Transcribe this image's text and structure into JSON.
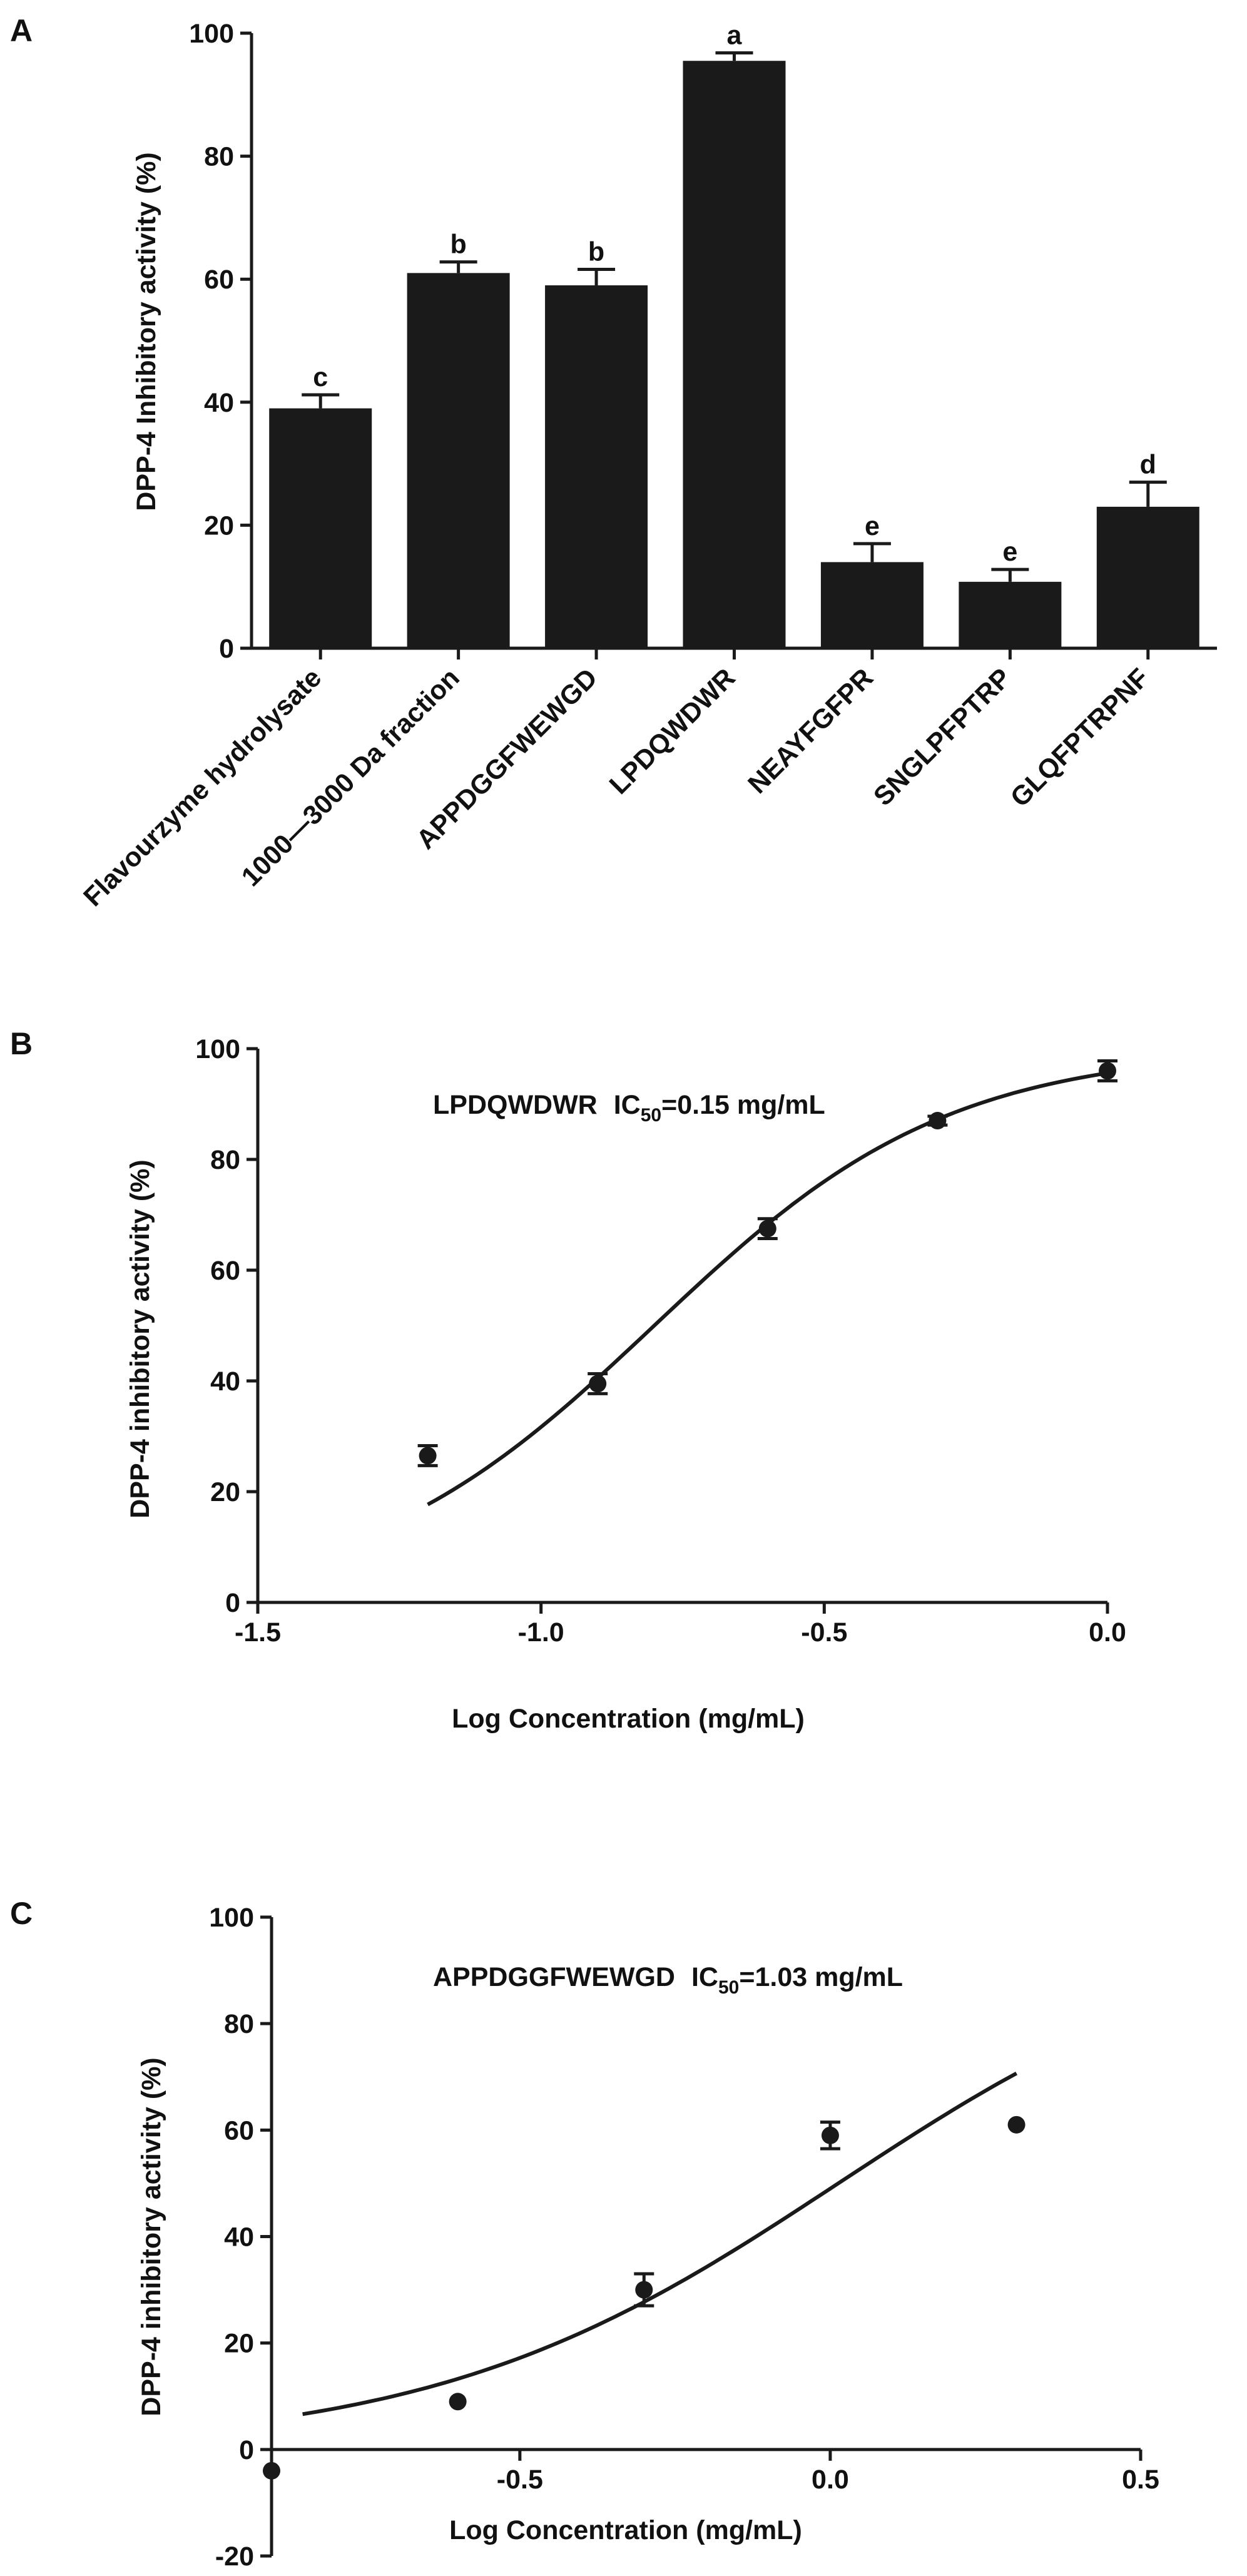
{
  "chart_data": [
    {
      "panel": "A",
      "type": "bar",
      "ylabel": "DPP-4 Inhibitory activity (%)",
      "xlabel": "",
      "ylim": [
        0,
        100
      ],
      "yticks": [
        "0",
        "20",
        "40",
        "60",
        "80",
        "100"
      ],
      "categories": [
        "Flavourzyme hydrolysate",
        "1000—3000 Da fraction",
        "APPDGGFWEWGD",
        "LPDQWDWR",
        "NEAYFGFPR",
        "SNGLPFPTRP",
        "GLQFPTRPNF"
      ],
      "values": [
        39,
        61,
        59,
        95.5,
        14,
        10.8,
        23
      ],
      "errors": [
        2.2,
        1.8,
        2.6,
        1.3,
        3.0,
        2.0,
        4.0
      ],
      "letters": [
        "c",
        "b",
        "b",
        "a",
        "e",
        "e",
        "d"
      ],
      "bar_color": "#1a1a1a"
    },
    {
      "panel": "B",
      "type": "scatter",
      "annotation": {
        "peptide": "LPDQWDWR",
        "ic_prefix": "IC",
        "ic_sub": "50",
        "ic_value": "=0.15 mg/mL"
      },
      "xlabel": "Log Concentration (mg/mL)",
      "ylabel": "DPP-4 inhibitory activity (%)",
      "xlim": [
        -1.5,
        0.0
      ],
      "ylim": [
        0,
        100
      ],
      "xticks": [
        "-1.5",
        "-1.0",
        "-0.5",
        "0.0"
      ],
      "yticks": [
        "0",
        "20",
        "40",
        "60",
        "80",
        "100"
      ],
      "x": [
        -1.2,
        -0.9,
        -0.6,
        -0.3,
        0.0
      ],
      "y": [
        26.5,
        39.5,
        67.5,
        87,
        96
      ],
      "errors": [
        1.8,
        1.8,
        1.8,
        0.8,
        1.8
      ],
      "fit_x_range": [
        -1.2,
        0.0
      ],
      "fit": {
        "bottom": 0,
        "top": 100,
        "log_ec50": -0.8,
        "hill": 1.67
      }
    },
    {
      "panel": "C",
      "type": "scatter",
      "annotation": {
        "peptide": "APPDGGFWEWGD",
        "ic_prefix": "IC",
        "ic_sub": "50",
        "ic_value": "=1.03 mg/mL"
      },
      "xlabel": "Log Concentration (mg/mL)",
      "ylabel": "DPP-4 inhibitory activity (%)",
      "xlim": [
        -0.9,
        0.5
      ],
      "ylim": [
        -20,
        100
      ],
      "xticks": [
        "-0.5",
        "0.0",
        "0.5"
      ],
      "xtick_values": [
        -0.5,
        0.0,
        0.5
      ],
      "yticks": [
        "-20",
        "0",
        "20",
        "40",
        "60",
        "80",
        "100"
      ],
      "x": [
        -0.9,
        -0.6,
        -0.3,
        0.0,
        0.3
      ],
      "y": [
        -4,
        9,
        30,
        59,
        61
      ],
      "errors": [
        0,
        0,
        3,
        2.5,
        0
      ],
      "fit_x_range": [
        -0.85,
        0.3
      ],
      "fit": {
        "bottom": 0,
        "top": 100,
        "log_ec50": 0.013,
        "hill": 1.33
      }
    }
  ]
}
